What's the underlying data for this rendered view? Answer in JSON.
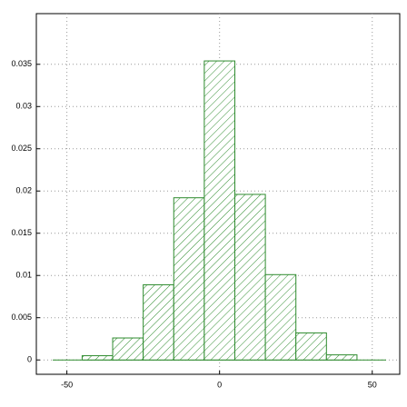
{
  "chart_data": {
    "type": "histogram",
    "bins": [
      -45,
      -35,
      -25,
      -15,
      -5,
      5,
      15,
      25,
      35,
      45
    ],
    "values": [
      0.0005,
      0.0026,
      0.0089,
      0.0192,
      0.0354,
      0.0196,
      0.0101,
      0.0032,
      0.0006
    ],
    "color": "#2e8b2e",
    "xlim": [
      -60,
      59
    ],
    "ylim": [
      -0.0017,
      0.041
    ],
    "xticks": [
      -50,
      0,
      50
    ],
    "yticks": [
      0,
      0.005,
      0.01,
      0.015,
      0.02,
      0.025,
      0.03,
      0.035
    ],
    "grid": true
  }
}
